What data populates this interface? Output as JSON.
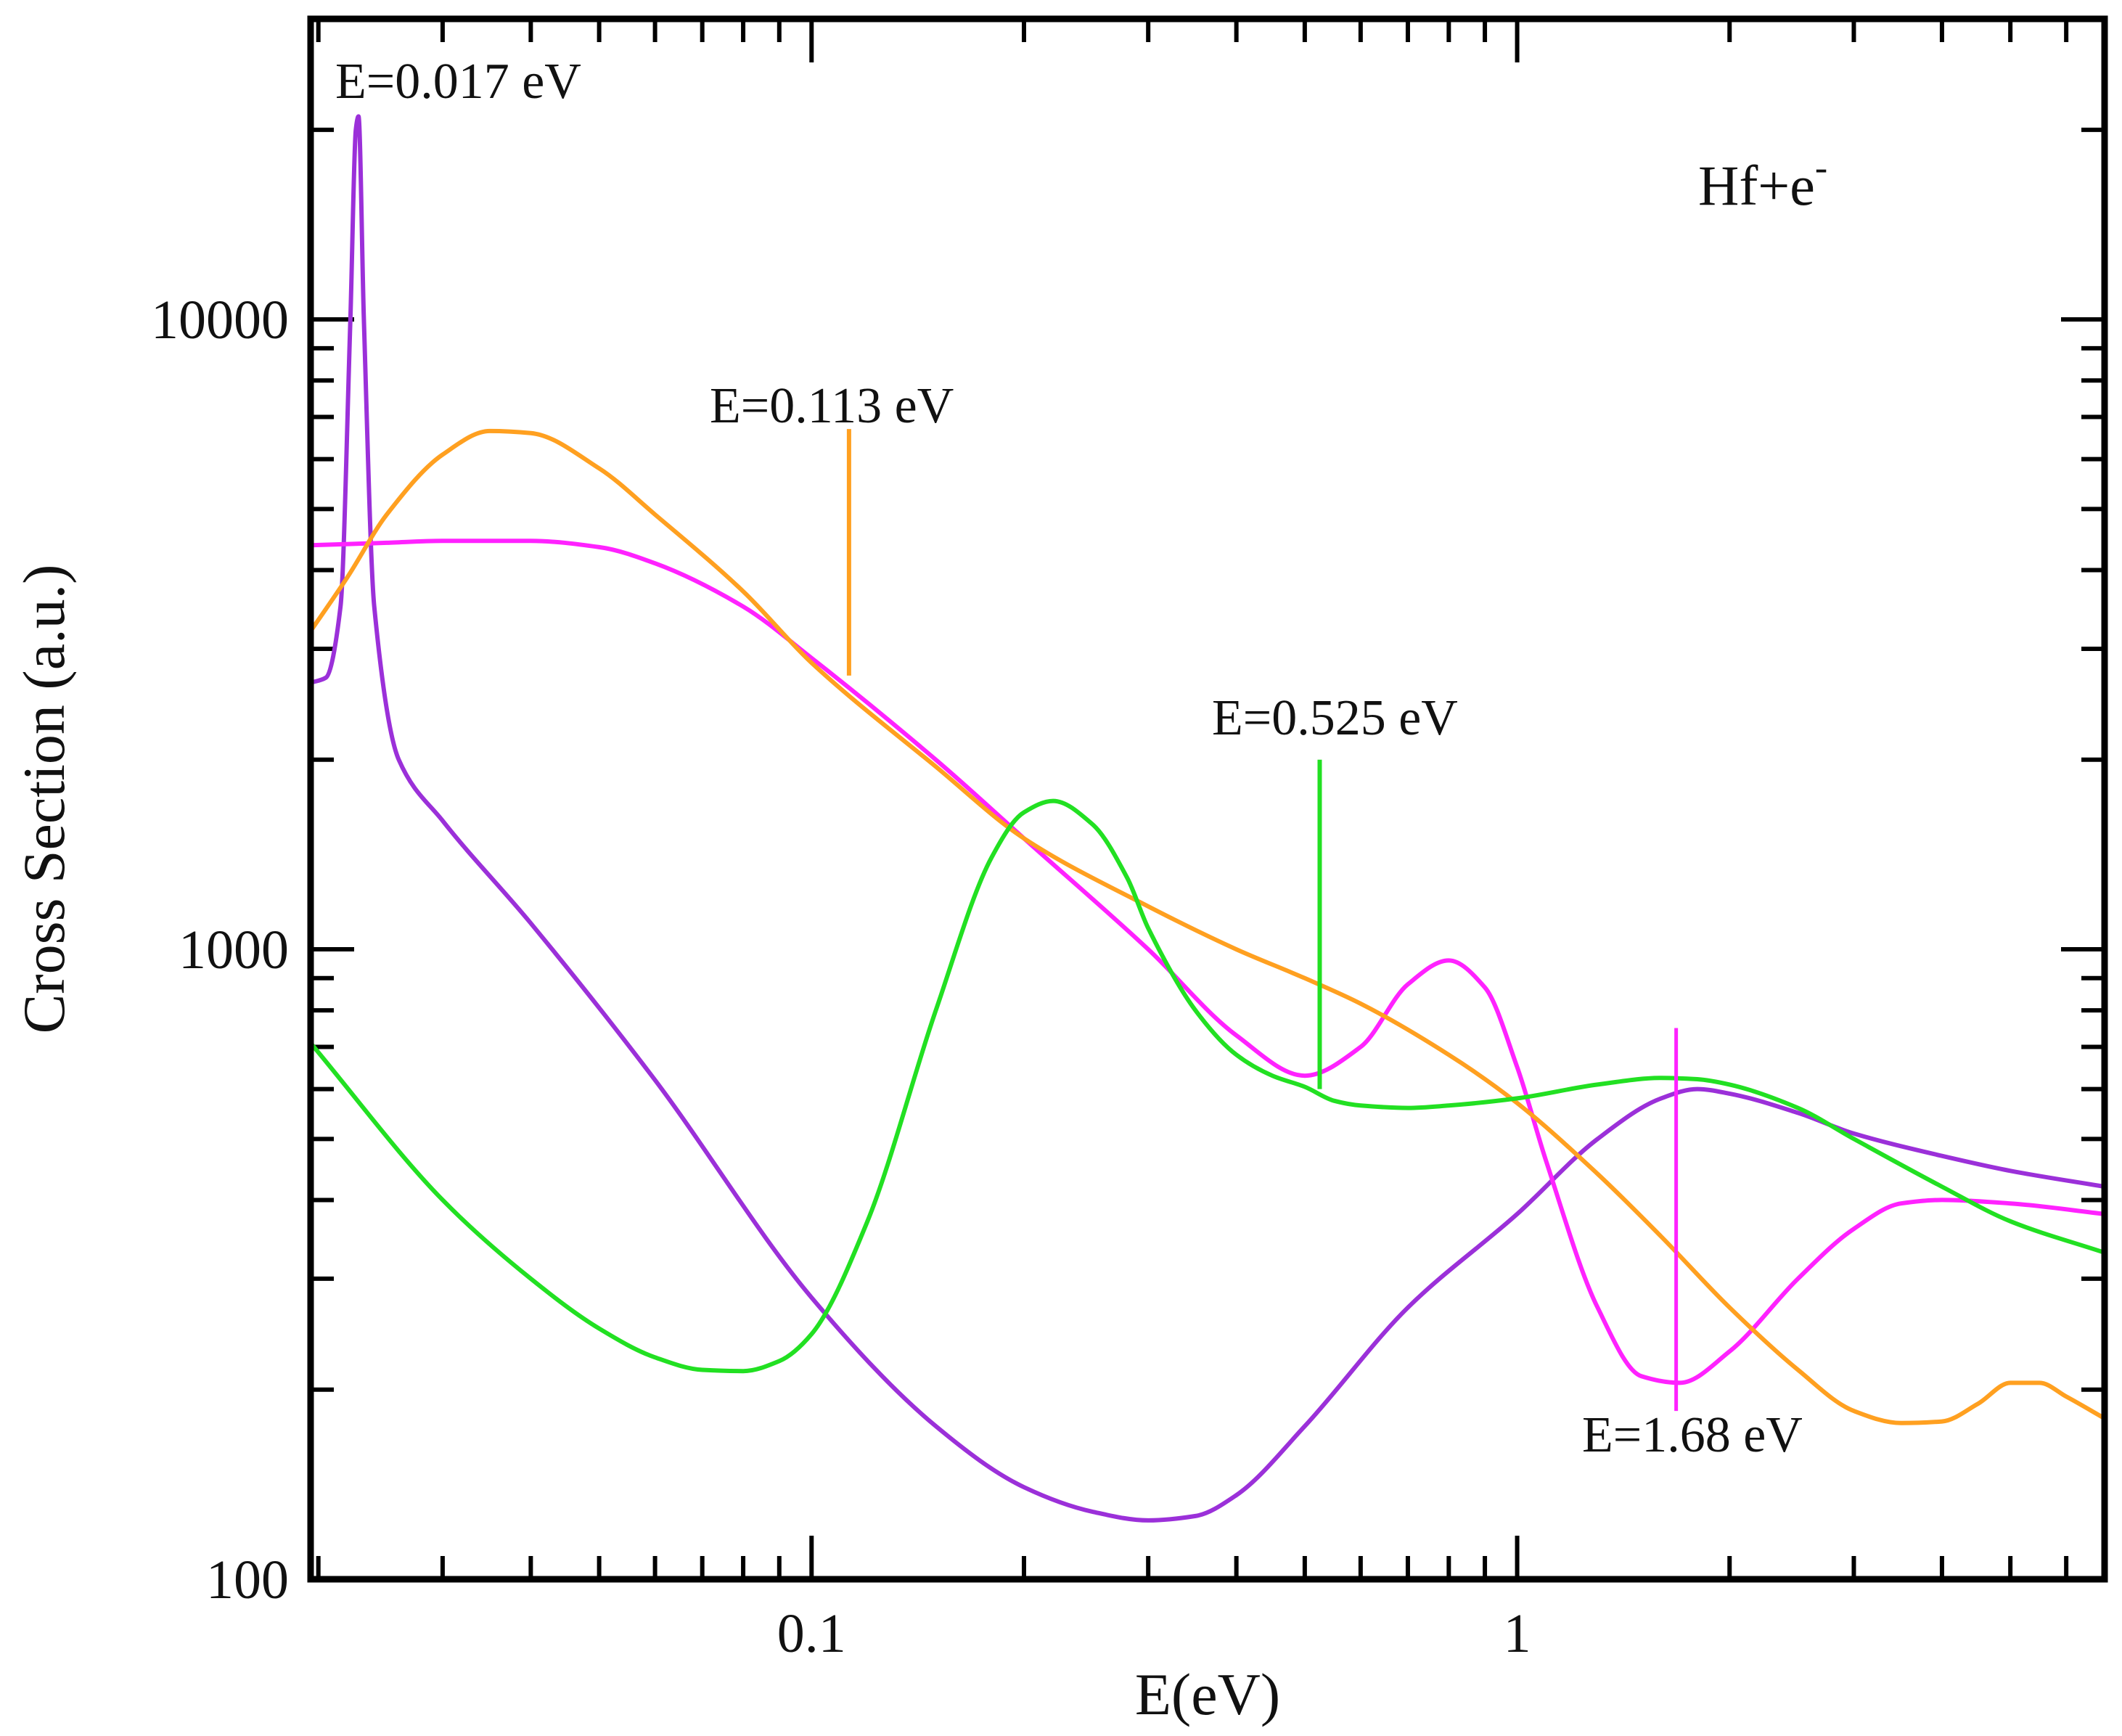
{
  "chart_data": {
    "type": "line",
    "title": "",
    "xlabel": "E(eV)",
    "ylabel": "Cross Section (a.u.)",
    "x_scale": "log",
    "y_scale": "log",
    "xlim": [
      0.0195,
      6.8
    ],
    "ylim": [
      100,
      30000
    ],
    "grid": false,
    "legend": "none",
    "x_tick_labels": [
      {
        "value": 0.1,
        "label": "0.1"
      },
      {
        "value": 1,
        "label": "1"
      }
    ],
    "y_tick_labels": [
      {
        "value": 100,
        "label": "100"
      },
      {
        "value": 1000,
        "label": "1000"
      },
      {
        "value": 10000,
        "label": "10000"
      }
    ],
    "system_label": {
      "base": "Hf+e",
      "sup": "-"
    },
    "annotations": [
      {
        "text": "E=0.017 eV",
        "x": 0.0225,
        "y": 22500,
        "color": "#9b30d9"
      },
      {
        "text": "E=0.113 eV",
        "x": 0.113,
        "y": 6700,
        "color": "#ffa020"
      },
      {
        "text": "E=0.525 eV",
        "x": 0.525,
        "y": 2000,
        "color": "#22e022"
      },
      {
        "text": "E=1.68 eV",
        "x": 1.68,
        "y": 750,
        "color": "#ff22ff"
      }
    ],
    "series": [
      {
        "color": "#9b30d9",
        "x": [
          0.0195,
          0.0205,
          0.0215,
          0.0222,
          0.0226,
          0.0228,
          0.0232,
          0.024,
          0.026,
          0.03,
          0.04,
          0.06,
          0.1,
          0.15,
          0.2,
          0.25,
          0.3,
          0.35,
          0.4,
          0.5,
          0.7,
          1.0,
          1.3,
          1.6,
          1.8,
          2.0,
          2.5,
          3.0,
          4.0,
          5.0,
          6.8
        ],
        "y": [
          2650,
          2700,
          3500,
          10000,
          20000,
          21000,
          10000,
          3500,
          2000,
          1600,
          1100,
          620,
          280,
          175,
          140,
          128,
          124,
          126,
          136,
          175,
          270,
          380,
          500,
          580,
          600,
          590,
          550,
          510,
          470,
          445,
          420
        ]
      },
      {
        "color": "#ff22ff",
        "x": [
          0.0195,
          0.025,
          0.03,
          0.04,
          0.05,
          0.06,
          0.08,
          0.1,
          0.15,
          0.2,
          0.3,
          0.4,
          0.5,
          0.6,
          0.7,
          0.8,
          0.9,
          1.0,
          1.1,
          1.3,
          1.5,
          1.7,
          2.0,
          2.5,
          3.0,
          3.5,
          4.0,
          5.0,
          6.8
        ],
        "y": [
          4380,
          4420,
          4450,
          4450,
          4350,
          4100,
          3500,
          2900,
          2000,
          1500,
          1000,
          730,
          630,
          700,
          880,
          960,
          870,
          650,
          460,
          270,
          210,
          205,
          230,
          300,
          360,
          395,
          400,
          395,
          380
        ]
      },
      {
        "color": "#ffa020",
        "x": [
          0.0195,
          0.022,
          0.025,
          0.03,
          0.035,
          0.04,
          0.05,
          0.06,
          0.08,
          0.1,
          0.15,
          0.2,
          0.3,
          0.4,
          0.5,
          0.6,
          0.8,
          1.0,
          1.3,
          1.6,
          2.0,
          2.5,
          3.0,
          3.5,
          4.0,
          4.5,
          5.0,
          5.5,
          6.0,
          6.8
        ],
        "y": [
          3200,
          3900,
          4900,
          6100,
          6650,
          6600,
          5800,
          4900,
          3700,
          2850,
          1950,
          1500,
          1170,
          1000,
          900,
          820,
          680,
          570,
          440,
          350,
          270,
          215,
          185,
          177,
          178,
          190,
          205,
          205,
          195,
          180
        ]
      },
      {
        "color": "#22e022",
        "x": [
          0.0195,
          0.03,
          0.04,
          0.05,
          0.06,
          0.07,
          0.08,
          0.09,
          0.1,
          0.12,
          0.15,
          0.18,
          0.2,
          0.22,
          0.25,
          0.28,
          0.3,
          0.35,
          0.4,
          0.45,
          0.5,
          0.55,
          0.6,
          0.7,
          0.8,
          1.0,
          1.3,
          1.6,
          1.8,
          2.0,
          2.5,
          3.0,
          4.0,
          5.0,
          6.8
        ],
        "y": [
          710,
          400,
          300,
          250,
          225,
          215,
          214,
          222,
          245,
          370,
          800,
          1400,
          1650,
          1720,
          1580,
          1300,
          1080,
          800,
          680,
          630,
          605,
          575,
          565,
          560,
          565,
          580,
          610,
          625,
          622,
          610,
          560,
          500,
          420,
          370,
          330
        ]
      }
    ]
  }
}
